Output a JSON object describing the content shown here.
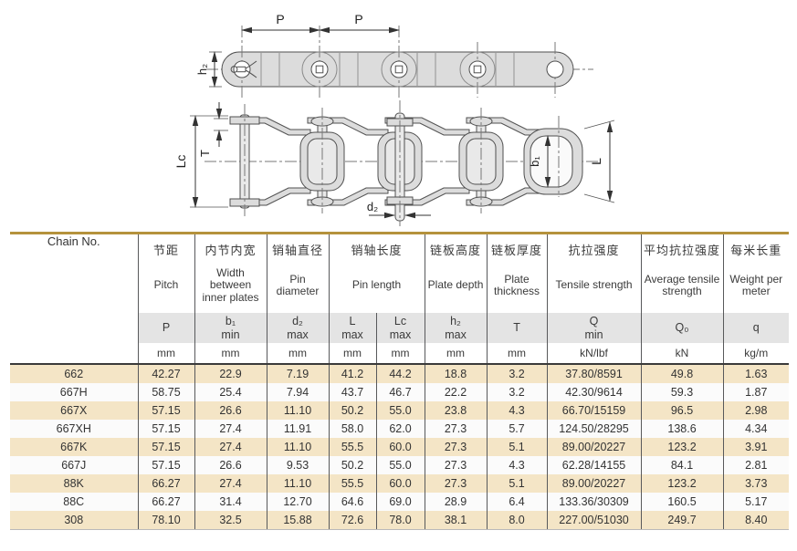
{
  "diagrams": {
    "top_view": {
      "pitch_label_1": "P",
      "pitch_label_2": "P",
      "plate_depth_label": "h₂"
    },
    "plan_view": {
      "pin_length_cotter_label": "Lc",
      "plate_thickness_label": "T",
      "inner_width_label": "b₁",
      "pin_length_label": "L",
      "pin_diameter_label": "d₂"
    }
  },
  "table": {
    "corner_header": "Chain No.",
    "columns": [
      {
        "cn": "节距",
        "en": "Pitch",
        "sym": "P",
        "unit": "mm"
      },
      {
        "cn": "内节内宽",
        "en": "Width between inner plates",
        "sym": "b₁\nmin",
        "unit": "mm"
      },
      {
        "cn": "销轴直径",
        "en": "Pin diameter",
        "sym": "d₂\nmax",
        "unit": "mm"
      },
      {
        "cn": "销轴长度",
        "en": "Pin length",
        "sym": "L\nmax",
        "sym2": "Lc\nmax",
        "unit": "mm",
        "unit2": "mm"
      },
      {
        "cn": "链板高度",
        "en": "Plate depth",
        "sym": "h₂\nmax",
        "unit": "mm"
      },
      {
        "cn": "链板厚度",
        "en": "Plate thickness",
        "sym": "T",
        "unit": "mm"
      },
      {
        "cn": "抗拉强度",
        "en": "Tensile strength",
        "sym": "Q\nmin",
        "unit": "kN/lbf"
      },
      {
        "cn": "平均抗拉强度",
        "en": "Average tensile strength",
        "sym": "Q₀",
        "unit": "kN"
      },
      {
        "cn": "每米长重",
        "en": "Weight per meter",
        "sym": "q",
        "unit": "kg/m"
      }
    ],
    "rows": [
      [
        "662",
        "42.27",
        "22.9",
        "7.19",
        "41.2",
        "44.2",
        "18.8",
        "3.2",
        "37.80/8591",
        "49.8",
        "1.63"
      ],
      [
        "667H",
        "58.75",
        "25.4",
        "7.94",
        "43.7",
        "46.7",
        "22.2",
        "3.2",
        "42.30/9614",
        "59.3",
        "1.87"
      ],
      [
        "667X",
        "57.15",
        "26.6",
        "11.10",
        "50.2",
        "55.0",
        "23.8",
        "4.3",
        "66.70/15159",
        "96.5",
        "2.98"
      ],
      [
        "667XH",
        "57.15",
        "27.4",
        "11.91",
        "58.0",
        "62.0",
        "27.3",
        "5.7",
        "124.50/28295",
        "138.6",
        "4.34"
      ],
      [
        "667K",
        "57.15",
        "27.4",
        "11.10",
        "55.5",
        "60.0",
        "27.3",
        "5.1",
        "89.00/20227",
        "123.2",
        "3.91"
      ],
      [
        "667J",
        "57.15",
        "26.6",
        "9.53",
        "50.2",
        "55.0",
        "27.3",
        "4.3",
        "62.28/14155",
        "84.1",
        "2.81"
      ],
      [
        "88K",
        "66.27",
        "27.4",
        "11.10",
        "55.5",
        "60.0",
        "27.3",
        "5.1",
        "89.00/20227",
        "123.2",
        "3.73"
      ],
      [
        "88C",
        "66.27",
        "31.4",
        "12.70",
        "64.6",
        "69.0",
        "28.9",
        "6.4",
        "133.36/30309",
        "160.5",
        "5.17"
      ],
      [
        "308",
        "78.10",
        "32.5",
        "15.88",
        "72.6",
        "78.0",
        "38.1",
        "8.0",
        "227.00/51030",
        "249.7",
        "8.40"
      ]
    ]
  },
  "colors": {
    "accent_gold": "#b5923c",
    "row_tan": "#f4e5c6",
    "row_light": "#fbfbfb",
    "symbol_band_gray": "#e4e4e4",
    "drawing_fill": "#dcdcdc"
  }
}
